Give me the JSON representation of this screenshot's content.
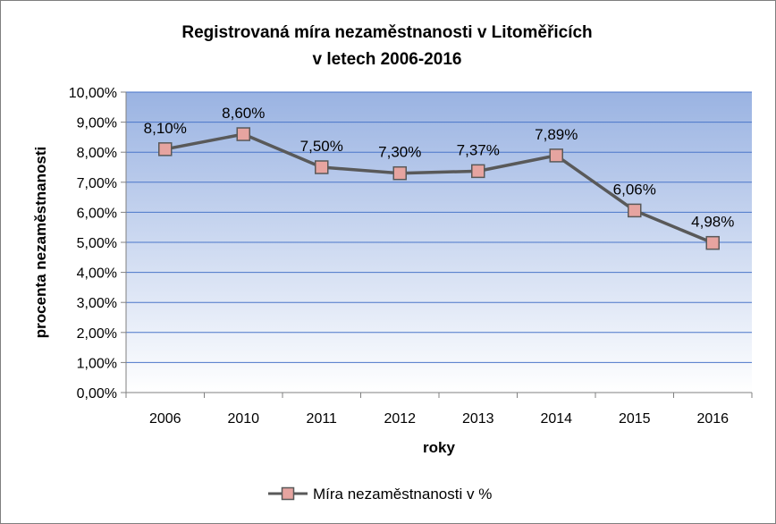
{
  "chart_data": {
    "type": "line",
    "title": [
      "Registrovaná míra nezaměstnanosti v Litoměřicích",
      "v letech 2006-2016"
    ],
    "xlabel": "roky",
    "ylabel": "procenta nezaměstnanosti",
    "categories": [
      "2006",
      "2010",
      "2011",
      "2012",
      "2013",
      "2014",
      "2015",
      "2016"
    ],
    "series": [
      {
        "name": "Míra nezaměstnanosti v %",
        "values": [
          8.1,
          8.6,
          7.5,
          7.3,
          7.37,
          7.89,
          6.06,
          4.98
        ],
        "data_labels": [
          "8,10%",
          "8,60%",
          "7,50%",
          "7,30%",
          "7,37%",
          "7,89%",
          "6,06%",
          "4,98%"
        ],
        "line_color": "#595959",
        "marker_fill": "#e6a4a0",
        "marker_stroke": "#595959"
      }
    ],
    "ylim": [
      0,
      10
    ],
    "yticks": [
      0,
      1,
      2,
      3,
      4,
      5,
      6,
      7,
      8,
      9,
      10
    ],
    "ytick_labels": [
      "0,00%",
      "1,00%",
      "2,00%",
      "3,00%",
      "4,00%",
      "5,00%",
      "6,00%",
      "7,00%",
      "8,00%",
      "9,00%",
      "10,00%"
    ],
    "grid": true,
    "legend_position": "bottom",
    "plot_background": {
      "top": "#9ab3e2",
      "bottom": "#ffffff"
    }
  }
}
